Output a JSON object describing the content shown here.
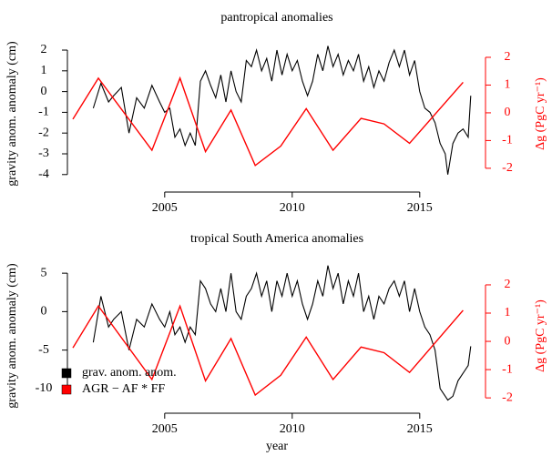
{
  "chart_data": [
    {
      "type": "line",
      "title": "pantropical anomalies",
      "y_label": "gravity anom. anomaly (cm)",
      "y2_label": "Δg (PgC yr⁻¹)",
      "xlim": [
        2001.4,
        2017.4
      ],
      "xticks": [
        2005,
        2010,
        2015
      ],
      "ylim": [
        -4.58,
        2.44
      ],
      "yticks": [
        -4,
        -3,
        -2,
        -1,
        0,
        1,
        2
      ],
      "y2lim": [
        -2.66,
        2.59
      ],
      "y2ticks": [
        -2,
        -1,
        0,
        1,
        2
      ],
      "series": [
        {
          "color": "#000000",
          "x": [
            2002.2,
            2002.5,
            2002.8,
            2003.0,
            2003.3,
            2003.6,
            2003.9,
            2004.2,
            2004.5,
            2004.8,
            2005.0,
            2005.2,
            2005.4,
            2005.6,
            2005.8,
            2006.0,
            2006.2,
            2006.4,
            2006.6,
            2006.8,
            2007.0,
            2007.2,
            2007.4,
            2007.6,
            2007.8,
            2008.0,
            2008.2,
            2008.4,
            2008.6,
            2008.8,
            2009.0,
            2009.2,
            2009.4,
            2009.6,
            2009.8,
            2010.0,
            2010.2,
            2010.4,
            2010.6,
            2010.8,
            2011.0,
            2011.2,
            2011.4,
            2011.6,
            2011.8,
            2012.0,
            2012.2,
            2012.4,
            2012.6,
            2012.8,
            2013.0,
            2013.2,
            2013.4,
            2013.6,
            2013.8,
            2014.0,
            2014.2,
            2014.4,
            2014.6,
            2014.8,
            2015.0,
            2015.2,
            2015.4,
            2015.6,
            2015.8,
            2016.0,
            2016.1,
            2016.3,
            2016.5,
            2016.7,
            2016.9,
            2017.0
          ],
          "values": [
            -0.8,
            0.4,
            -0.5,
            -0.2,
            0.2,
            -2.0,
            -0.3,
            -0.8,
            0.3,
            -0.5,
            -1.0,
            -0.8,
            -2.2,
            -1.8,
            -2.6,
            -2.0,
            -2.6,
            0.5,
            1.0,
            0.3,
            -0.3,
            0.8,
            -0.5,
            1.0,
            0.0,
            -0.5,
            1.5,
            1.2,
            2.0,
            1.0,
            1.6,
            0.5,
            2.0,
            0.8,
            1.8,
            1.0,
            1.5,
            0.5,
            -0.2,
            0.5,
            1.8,
            1.0,
            2.2,
            1.2,
            1.8,
            0.8,
            1.5,
            1.0,
            1.8,
            0.5,
            1.2,
            0.2,
            1.0,
            0.5,
            1.4,
            2.0,
            1.2,
            2.0,
            0.8,
            1.5,
            0.0,
            -0.8,
            -1.0,
            -1.5,
            -2.5,
            -3.0,
            -4.0,
            -2.5,
            -2.0,
            -1.8,
            -2.2,
            -0.2
          ]
        },
        {
          "color": "#ff0000",
          "axis": "y2",
          "x": [
            2001.4,
            2002.4,
            2004.5,
            2005.6,
            2006.6,
            2007.6,
            2008.55,
            2009.55,
            2010.55,
            2011.6,
            2012.7,
            2013.6,
            2014.6,
            2016.7
          ],
          "values": [
            -0.23,
            1.25,
            -1.35,
            1.25,
            -1.4,
            0.1,
            -1.9,
            -1.2,
            0.15,
            -1.35,
            -0.2,
            -0.4,
            -1.1,
            1.1
          ]
        }
      ]
    },
    {
      "type": "line",
      "title": "tropical South America anomalies",
      "x_label": "year",
      "y_label": "gravity anom. anomaly (cm)",
      "y2_label": "Δg (PgC yr⁻¹)",
      "xlim": [
        2001.4,
        2017.4
      ],
      "xticks": [
        2005,
        2010,
        2015
      ],
      "ylim": [
        -12.5,
        6.2
      ],
      "yticks": [
        -10,
        -5,
        0,
        5
      ],
      "y2lim": [
        -2.35,
        2.74
      ],
      "y2ticks": [
        -2,
        -1,
        0,
        1,
        2
      ],
      "legend": "bottom-left",
      "series": [
        {
          "name": "grav. anom. anom.",
          "color": "#000000",
          "x": [
            2002.2,
            2002.5,
            2002.8,
            2003.0,
            2003.3,
            2003.6,
            2003.9,
            2004.2,
            2004.5,
            2004.8,
            2005.0,
            2005.2,
            2005.4,
            2005.6,
            2005.8,
            2006.0,
            2006.2,
            2006.4,
            2006.6,
            2006.8,
            2007.0,
            2007.2,
            2007.4,
            2007.6,
            2007.8,
            2008.0,
            2008.2,
            2008.4,
            2008.6,
            2008.8,
            2009.0,
            2009.2,
            2009.4,
            2009.6,
            2009.8,
            2010.0,
            2010.2,
            2010.4,
            2010.6,
            2010.8,
            2011.0,
            2011.2,
            2011.4,
            2011.6,
            2011.8,
            2012.0,
            2012.2,
            2012.4,
            2012.6,
            2012.8,
            2013.0,
            2013.2,
            2013.4,
            2013.6,
            2013.8,
            2014.0,
            2014.2,
            2014.4,
            2014.6,
            2014.8,
            2015.0,
            2015.2,
            2015.4,
            2015.6,
            2015.8,
            2016.0,
            2016.1,
            2016.3,
            2016.5,
            2016.7,
            2016.9,
            2017.0
          ],
          "values": [
            -4,
            2,
            -2,
            -1,
            0,
            -5,
            -1,
            -2,
            1,
            -1,
            -2,
            0,
            -3,
            -2,
            -4,
            -2,
            -3,
            4,
            3,
            1,
            0,
            3,
            0,
            5,
            0,
            -1,
            2,
            3,
            5,
            2,
            4,
            0,
            4,
            2,
            5,
            2,
            4,
            1,
            -1,
            1,
            4,
            2,
            6,
            3,
            5,
            1,
            4,
            2,
            5,
            0,
            2,
            -1,
            2,
            1,
            3,
            4,
            2,
            4,
            0,
            3,
            0,
            -2,
            -3,
            -5,
            -10,
            -11,
            -11.5,
            -11,
            -9,
            -8,
            -7,
            -4.5
          ]
        },
        {
          "name": "AGR − AF * FF",
          "color": "#ff0000",
          "axis": "y2",
          "x": [
            2001.4,
            2002.4,
            2004.5,
            2005.6,
            2006.6,
            2007.6,
            2008.55,
            2009.55,
            2010.55,
            2011.6,
            2012.7,
            2013.6,
            2014.6,
            2016.7
          ],
          "values": [
            -0.23,
            1.25,
            -1.35,
            1.25,
            -1.4,
            0.1,
            -1.9,
            -1.2,
            0.15,
            -1.35,
            -0.2,
            -0.4,
            -1.1,
            1.1
          ]
        }
      ]
    }
  ]
}
